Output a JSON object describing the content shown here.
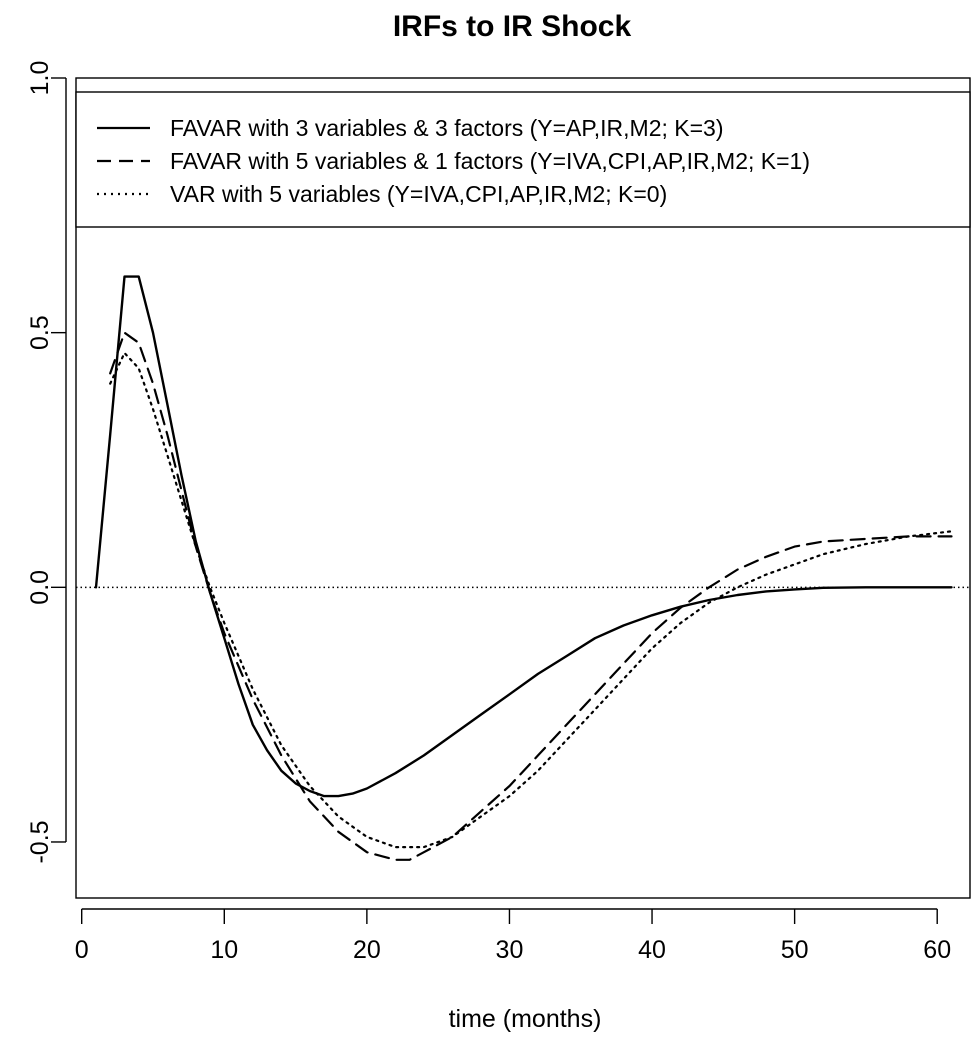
{
  "chart_data": {
    "type": "line",
    "title": "IRFs to IR Shock",
    "xlabel": "time (months)",
    "ylabel": "",
    "xlim": [
      -0.4,
      62.3
    ],
    "ylim": [
      -0.61,
      1.0
    ],
    "x_ticks": [
      0,
      10,
      20,
      30,
      40,
      50,
      60
    ],
    "x_tick_labels": [
      "0",
      "10",
      "20",
      "30",
      "40",
      "50",
      "60"
    ],
    "y_ticks": [
      -0.5,
      0.0,
      0.5,
      1.0
    ],
    "y_tick_labels": [
      "-0.5",
      "0.0",
      "0.5",
      "1.0"
    ],
    "grid": false,
    "zero_line": {
      "y": 0,
      "style": "dotted"
    },
    "legend": {
      "position": "top",
      "boxed": true
    },
    "series": [
      {
        "name": "FAVAR with 3 variables & 3 factors (Y=AP,IR,M2; K=3)",
        "style": "solid",
        "x": [
          1,
          2,
          3,
          4,
          5,
          6,
          7,
          8,
          9,
          10,
          11,
          12,
          13,
          14,
          15,
          16,
          17,
          18,
          19,
          20,
          22,
          24,
          26,
          28,
          30,
          32,
          34,
          36,
          38,
          40,
          42,
          44,
          46,
          48,
          50,
          52,
          55,
          58,
          61
        ],
        "y": [
          0.0,
          0.3,
          0.61,
          0.61,
          0.5,
          0.36,
          0.22,
          0.09,
          -0.01,
          -0.1,
          -0.19,
          -0.27,
          -0.32,
          -0.36,
          -0.385,
          -0.4,
          -0.41,
          -0.41,
          -0.405,
          -0.395,
          -0.365,
          -0.33,
          -0.29,
          -0.25,
          -0.21,
          -0.17,
          -0.135,
          -0.1,
          -0.075,
          -0.055,
          -0.038,
          -0.025,
          -0.015,
          -0.008,
          -0.004,
          -0.001,
          0.0,
          0.0,
          0.0
        ]
      },
      {
        "name": "FAVAR with 5 variables & 1 factors (Y=IVA,CPI,AP,IR,M2; K=1)",
        "style": "dashed",
        "x": [
          2,
          3,
          4,
          5,
          6,
          7,
          8,
          9,
          10,
          12,
          14,
          16,
          18,
          20,
          22,
          23,
          24,
          26,
          28,
          30,
          32,
          34,
          36,
          38,
          40,
          42,
          44,
          46,
          48,
          50,
          52,
          55,
          58,
          61
        ],
        "y": [
          0.42,
          0.5,
          0.48,
          0.4,
          0.3,
          0.19,
          0.08,
          -0.01,
          -0.09,
          -0.22,
          -0.33,
          -0.42,
          -0.48,
          -0.52,
          -0.535,
          -0.535,
          -0.52,
          -0.49,
          -0.44,
          -0.39,
          -0.33,
          -0.27,
          -0.21,
          -0.15,
          -0.09,
          -0.04,
          0.0,
          0.035,
          0.06,
          0.08,
          0.09,
          0.095,
          0.1,
          0.1
        ]
      },
      {
        "name": "VAR with 5 variables (Y=IVA,CPI,AP,IR,M2; K=0)",
        "style": "dotted",
        "x": [
          2,
          3,
          4,
          5,
          6,
          7,
          8,
          9,
          10,
          12,
          14,
          16,
          18,
          20,
          22,
          24,
          26,
          28,
          30,
          32,
          34,
          36,
          38,
          40,
          42,
          44,
          46,
          48,
          50,
          52,
          55,
          58,
          61
        ],
        "y": [
          0.4,
          0.46,
          0.43,
          0.35,
          0.26,
          0.17,
          0.08,
          0.0,
          -0.07,
          -0.2,
          -0.31,
          -0.39,
          -0.45,
          -0.49,
          -0.51,
          -0.51,
          -0.49,
          -0.45,
          -0.41,
          -0.36,
          -0.3,
          -0.24,
          -0.18,
          -0.12,
          -0.07,
          -0.03,
          0.0,
          0.025,
          0.045,
          0.065,
          0.085,
          0.1,
          0.11
        ]
      }
    ]
  }
}
